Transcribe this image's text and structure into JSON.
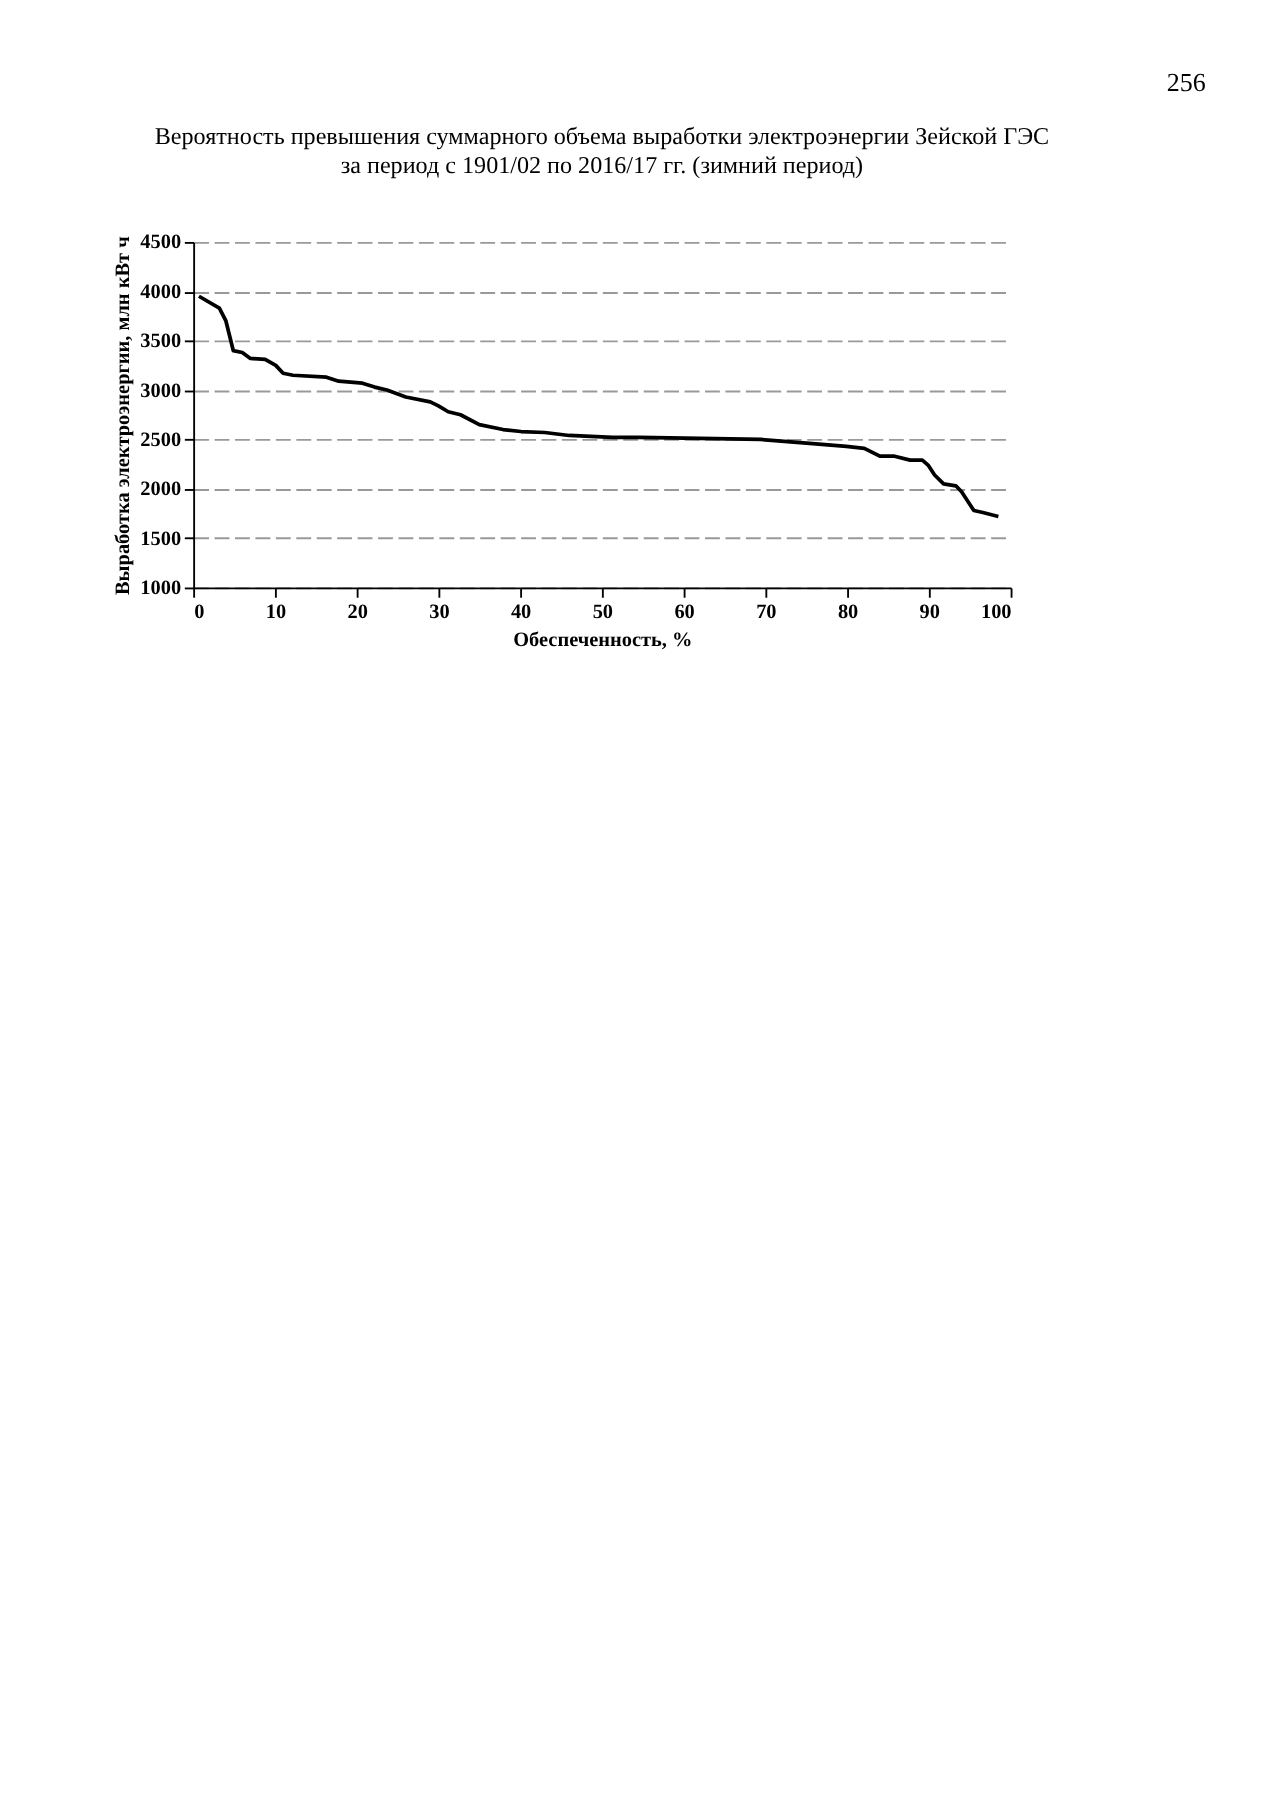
{
  "chart_data": {
    "type": "line",
    "title": "Вероятность превышения суммарного объема выработки электроэнергии Зейской ГЭС",
    "subtitle": "за период с 1901/02 по 2016/17 гг. (зимний период)",
    "annotations": [
      "256"
    ],
    "xlabel": "Обеспеченность, %",
    "ylabel": "Выработка электроэнергии, млн кВт ч",
    "x": [
      0.7,
      3.2,
      4.0,
      4.9,
      6.0,
      7.0,
      8.8,
      10.1,
      11.0,
      12.2,
      16.3,
      17.8,
      20.7,
      22.2,
      23.7,
      26.0,
      29.0,
      30.0,
      31.2,
      32.7,
      35.0,
      37.9,
      40.1,
      43.0,
      46.0,
      51.3,
      54.5,
      62.0,
      69.4,
      75.4,
      79.9,
      82.1,
      84.0,
      85.8,
      87.7,
      89.2,
      89.9,
      90.7,
      91.8,
      93.3,
      94.0,
      95.5,
      96.6,
      98.5
    ],
    "series": [
      {
        "color": "#000000",
        "values": [
          3950,
          3830,
          3700,
          3400,
          3380,
          3320,
          3310,
          3250,
          3170,
          3150,
          3130,
          3090,
          3070,
          3030,
          3000,
          2930,
          2880,
          2840,
          2780,
          2750,
          2650,
          2600,
          2580,
          2570,
          2540,
          2520,
          2520,
          2510,
          2500,
          2460,
          2430,
          2410,
          2330,
          2330,
          2290,
          2290,
          2240,
          2140,
          2050,
          2030,
          1970,
          1780,
          1760,
          1720
        ]
      }
    ],
    "xlim": [
      0,
      100
    ],
    "xticks": [
      0,
      10,
      20,
      30,
      40,
      50,
      60,
      70,
      80,
      90,
      100
    ],
    "ylim": [
      1000,
      4500
    ],
    "yticks": [
      1000,
      1500,
      2000,
      2500,
      3000,
      3500,
      4000,
      4500
    ],
    "grid": "y",
    "marker": "none",
    "line_style": "solid"
  }
}
